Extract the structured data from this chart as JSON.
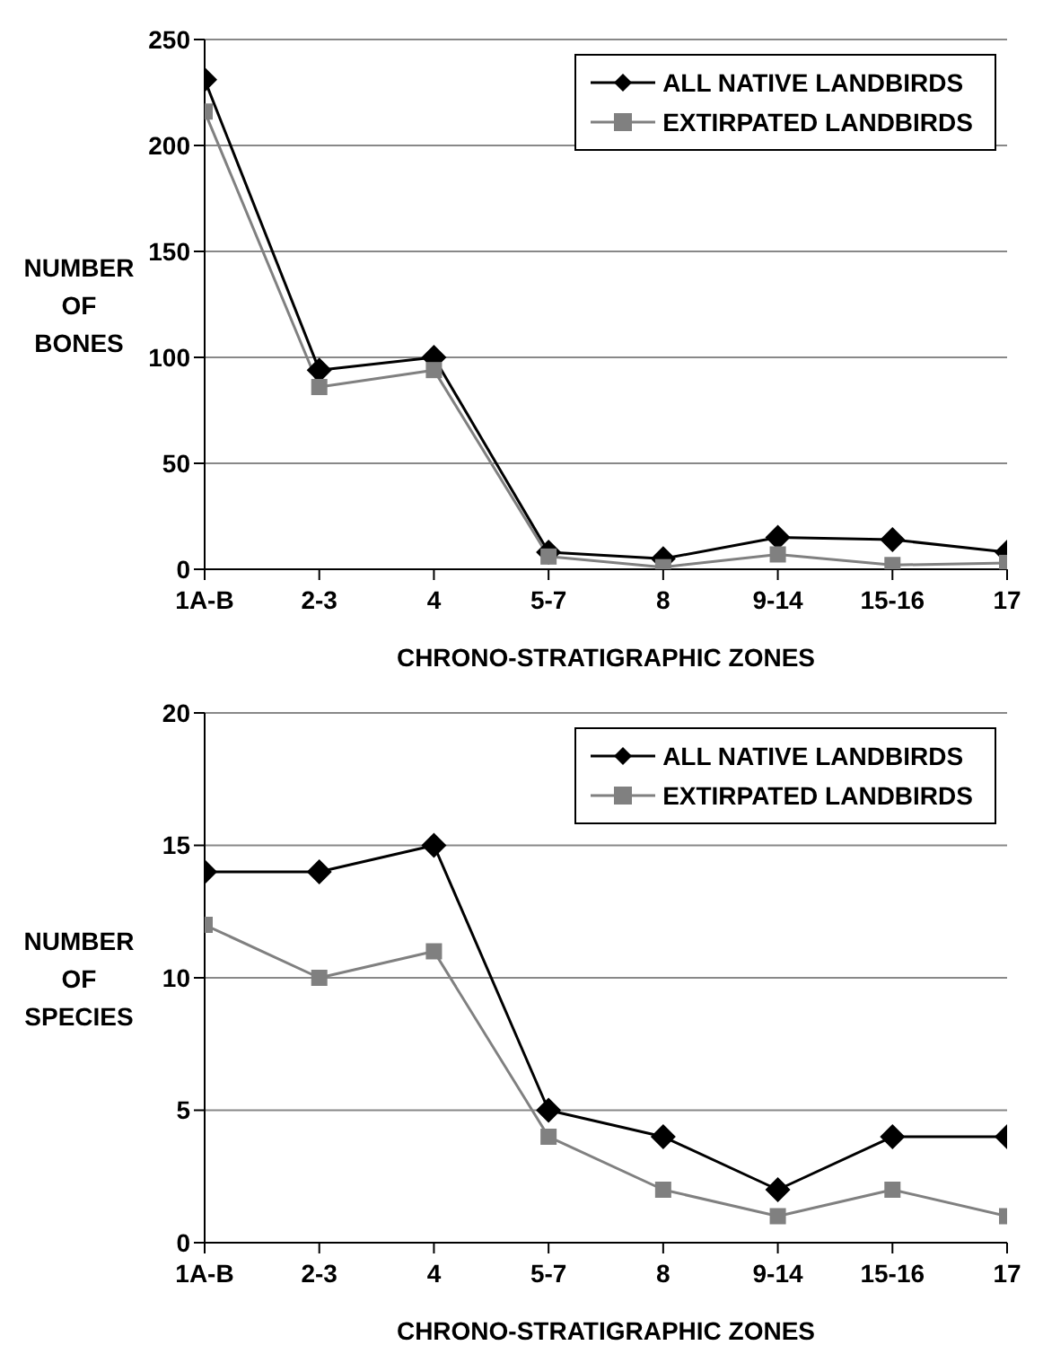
{
  "chart_data": [
    {
      "type": "line",
      "xlabel": "CHRONO-STRATIGRAPHIC ZONES",
      "ylabel": "NUMBER OF BONES",
      "categories": [
        "1A-B",
        "2-3",
        "4",
        "5-7",
        "8",
        "9-14",
        "15-16",
        "17"
      ],
      "ylim": [
        0,
        250
      ],
      "yticks": [
        0,
        50,
        100,
        150,
        200,
        250
      ],
      "grid": "y",
      "legend": "top right",
      "series": [
        {
          "name": "ALL NATIVE LANDBIRDS",
          "color": "#000000",
          "marker": "diamond",
          "values": [
            231,
            94,
            100,
            8,
            5,
            15,
            14,
            8
          ]
        },
        {
          "name": "EXTIRPATED LANDBIRDS",
          "color": "#808080",
          "marker": "square",
          "values": [
            216,
            86,
            94,
            6,
            1,
            7,
            2,
            3
          ]
        }
      ]
    },
    {
      "type": "line",
      "xlabel": "CHRONO-STRATIGRAPHIC ZONES",
      "ylabel": "NUMBER OF SPECIES",
      "categories": [
        "1A-B",
        "2-3",
        "4",
        "5-7",
        "8",
        "9-14",
        "15-16",
        "17"
      ],
      "ylim": [
        0,
        20
      ],
      "yticks": [
        0,
        5,
        10,
        15,
        20
      ],
      "grid": "y",
      "legend": "top right",
      "series": [
        {
          "name": "ALL NATIVE LANDBIRDS",
          "color": "#000000",
          "marker": "diamond",
          "values": [
            14,
            14,
            15,
            5,
            4,
            2,
            4,
            4
          ]
        },
        {
          "name": "EXTIRPATED LANDBIRDS",
          "color": "#808080",
          "marker": "square",
          "values": [
            12,
            10,
            11,
            4,
            2,
            1,
            2,
            1
          ]
        }
      ]
    }
  ]
}
